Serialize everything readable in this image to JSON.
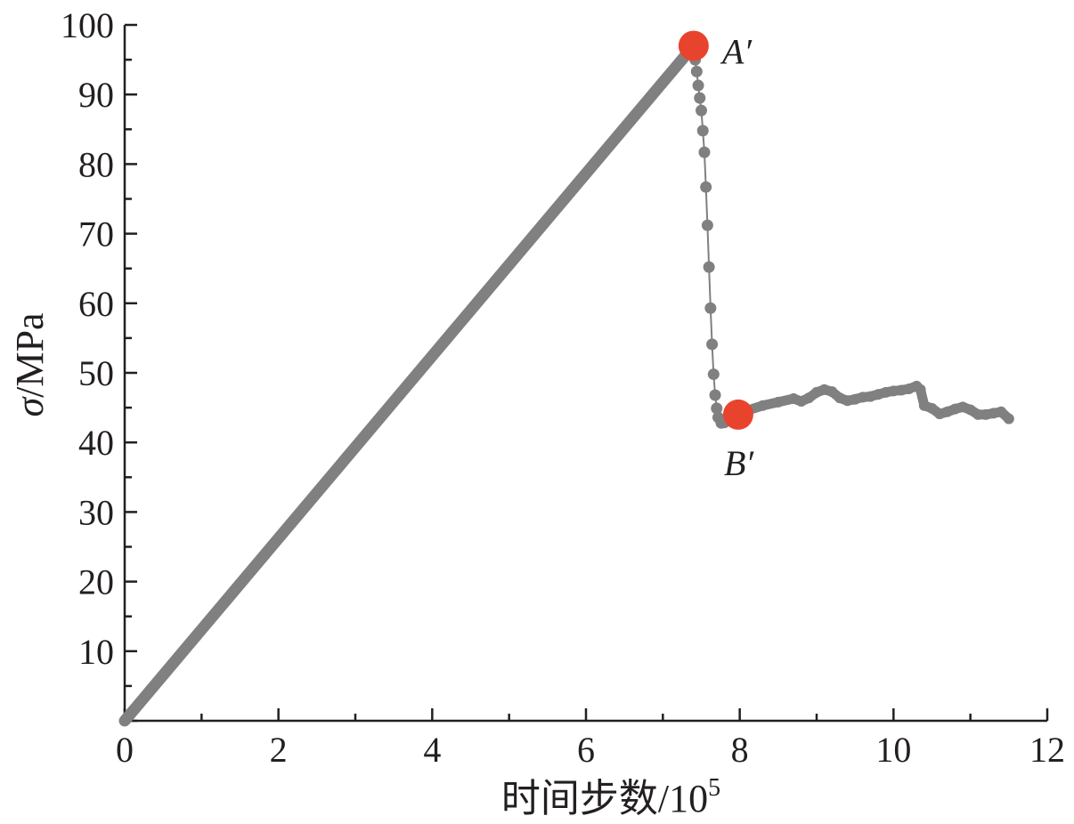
{
  "chart_data": {
    "type": "line",
    "title": "",
    "xlabel_main": "时间步数/10",
    "xlabel_sup": "5",
    "ylabel_symbol": "σ",
    "ylabel_unit": "/MPa",
    "xlim": [
      0,
      12
    ],
    "ylim": [
      0,
      100
    ],
    "xticks": [
      "0",
      "2",
      "4",
      "6",
      "8",
      "10",
      "12"
    ],
    "yticks": [
      "10",
      "20",
      "30",
      "40",
      "50",
      "60",
      "70",
      "80",
      "90",
      "100"
    ],
    "grid": false,
    "legend": "none",
    "series": [
      {
        "color": "#808080",
        "rising_segment": [
          [
            0,
            0
          ],
          [
            7.4,
            97
          ]
        ],
        "drop_points": [
          [
            7.42,
            95
          ],
          [
            7.44,
            93.3
          ],
          [
            7.46,
            91.3
          ],
          [
            7.48,
            89.5
          ],
          [
            7.5,
            87.7
          ],
          [
            7.52,
            84.8
          ],
          [
            7.54,
            81.7
          ],
          [
            7.56,
            76.7
          ],
          [
            7.58,
            71.2
          ],
          [
            7.6,
            65.2
          ],
          [
            7.62,
            59.3
          ],
          [
            7.64,
            54.1
          ],
          [
            7.66,
            49.8
          ],
          [
            7.68,
            46.8
          ],
          [
            7.7,
            44.9
          ],
          [
            7.72,
            43.6
          ],
          [
            7.76,
            42.8
          ]
        ],
        "plateau_points": [
          [
            7.8,
            42.8
          ],
          [
            7.95,
            43.6
          ],
          [
            8.1,
            44.6
          ],
          [
            8.3,
            45.3
          ],
          [
            8.5,
            45.8
          ],
          [
            8.7,
            46.3
          ],
          [
            8.8,
            45.9
          ],
          [
            8.9,
            46.4
          ],
          [
            9.0,
            47.2
          ],
          [
            9.1,
            47.6
          ],
          [
            9.2,
            47.3
          ],
          [
            9.3,
            46.4
          ],
          [
            9.4,
            46.0
          ],
          [
            9.5,
            46.2
          ],
          [
            9.6,
            46.5
          ],
          [
            9.7,
            46.6
          ],
          [
            9.8,
            46.9
          ],
          [
            9.9,
            47.2
          ],
          [
            10.0,
            47.4
          ],
          [
            10.1,
            47.5
          ],
          [
            10.2,
            47.7
          ],
          [
            10.3,
            48.1
          ],
          [
            10.35,
            47.6
          ],
          [
            10.4,
            45.3
          ],
          [
            10.5,
            44.9
          ],
          [
            10.6,
            44.1
          ],
          [
            10.7,
            44.4
          ],
          [
            10.8,
            44.8
          ],
          [
            10.9,
            45.1
          ],
          [
            11.0,
            44.7
          ],
          [
            11.1,
            44.0
          ],
          [
            11.2,
            44.0
          ],
          [
            11.3,
            44.2
          ],
          [
            11.4,
            44.4
          ],
          [
            11.5,
            43.4
          ]
        ]
      }
    ],
    "annotations": [
      {
        "label": "A′",
        "x": 7.4,
        "y": 97,
        "color": "#e8432d"
      },
      {
        "label": "B′",
        "x": 7.98,
        "y": 44,
        "color": "#e8432d"
      }
    ]
  }
}
